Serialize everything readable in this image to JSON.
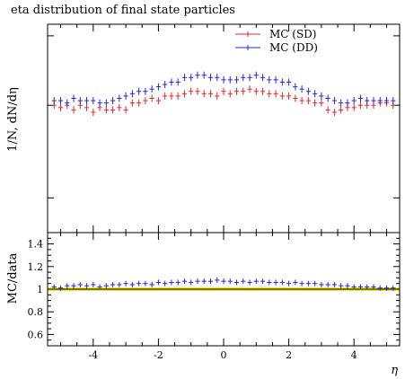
{
  "title": "eta distribution of final state particles",
  "chart_data": [
    {
      "type": "scatter",
      "title": "eta distribution of final state particles",
      "ylabel": "1/N, dN/dη",
      "xlim": [
        -5.4,
        5.4
      ],
      "legend": "top-right",
      "x": [
        -5.2,
        -5.0,
        -4.8,
        -4.6,
        -4.4,
        -4.2,
        -4.0,
        -3.8,
        -3.6,
        -3.4,
        -3.2,
        -3.0,
        -2.8,
        -2.6,
        -2.4,
        -2.2,
        -2.0,
        -1.8,
        -1.6,
        -1.4,
        -1.2,
        -1.0,
        -0.8,
        -0.6,
        -0.4,
        -0.2,
        0.0,
        0.2,
        0.4,
        0.6,
        0.8,
        1.0,
        1.2,
        1.4,
        1.6,
        1.8,
        2.0,
        2.2,
        2.4,
        2.6,
        2.8,
        3.0,
        3.2,
        3.4,
        3.6,
        3.8,
        4.0,
        4.2,
        4.4,
        4.6,
        4.8,
        5.0,
        5.2
      ],
      "series": [
        {
          "name": "MC (SD)",
          "color": "#e8262c",
          "values": [
            1.0,
            0.99,
            1.0,
            0.98,
            1.0,
            0.99,
            0.97,
            0.99,
            0.98,
            0.98,
            0.99,
            0.98,
            1.01,
            1.01,
            1.02,
            1.03,
            1.02,
            1.04,
            1.04,
            1.04,
            1.05,
            1.06,
            1.06,
            1.05,
            1.05,
            1.04,
            1.06,
            1.05,
            1.06,
            1.06,
            1.07,
            1.06,
            1.06,
            1.05,
            1.05,
            1.04,
            1.04,
            1.03,
            1.02,
            1.02,
            1.01,
            1.01,
            0.98,
            0.97,
            0.98,
            0.99,
            0.99,
            1.0,
            1.0,
            1.0,
            1.01,
            1.01,
            1.0
          ]
        },
        {
          "name": "MC (DD)",
          "color": "#2525e0",
          "values": [
            1.02,
            1.02,
            1.01,
            1.03,
            1.02,
            1.02,
            1.02,
            1.01,
            1.01,
            1.02,
            1.03,
            1.04,
            1.05,
            1.06,
            1.06,
            1.07,
            1.08,
            1.09,
            1.1,
            1.1,
            1.12,
            1.12,
            1.13,
            1.13,
            1.12,
            1.12,
            1.11,
            1.11,
            1.11,
            1.12,
            1.12,
            1.13,
            1.12,
            1.11,
            1.11,
            1.1,
            1.1,
            1.08,
            1.07,
            1.06,
            1.05,
            1.04,
            1.03,
            1.02,
            1.01,
            1.01,
            1.02,
            1.03,
            1.02,
            1.02,
            1.02,
            1.02,
            1.02
          ]
        }
      ]
    },
    {
      "type": "scatter",
      "xlabel": "η",
      "ylabel": "MC/data",
      "xlim": [
        -5.4,
        5.4
      ],
      "ylim": [
        0.5,
        1.5
      ],
      "x_ticks": [
        "-4",
        "-2",
        "0",
        "2",
        "4"
      ],
      "y_ticks": [
        "0.6",
        "0.8",
        "1",
        "1.2",
        "1.4"
      ],
      "reference_band": {
        "color": "#f2ea0f",
        "range": [
          0.985,
          1.015
        ]
      },
      "series": [
        {
          "color": "#2525e0",
          "values": [
            1.02,
            1.01,
            1.03,
            1.03,
            1.04,
            1.03,
            1.04,
            1.02,
            1.03,
            1.04,
            1.04,
            1.05,
            1.04,
            1.05,
            1.05,
            1.04,
            1.06,
            1.05,
            1.06,
            1.06,
            1.07,
            1.06,
            1.07,
            1.07,
            1.07,
            1.08,
            1.07,
            1.07,
            1.06,
            1.07,
            1.06,
            1.07,
            1.07,
            1.06,
            1.06,
            1.06,
            1.05,
            1.06,
            1.05,
            1.05,
            1.05,
            1.04,
            1.04,
            1.04,
            1.03,
            1.03,
            1.02,
            1.02,
            1.02,
            1.02,
            1.01,
            1.01,
            1.01
          ]
        }
      ]
    }
  ]
}
